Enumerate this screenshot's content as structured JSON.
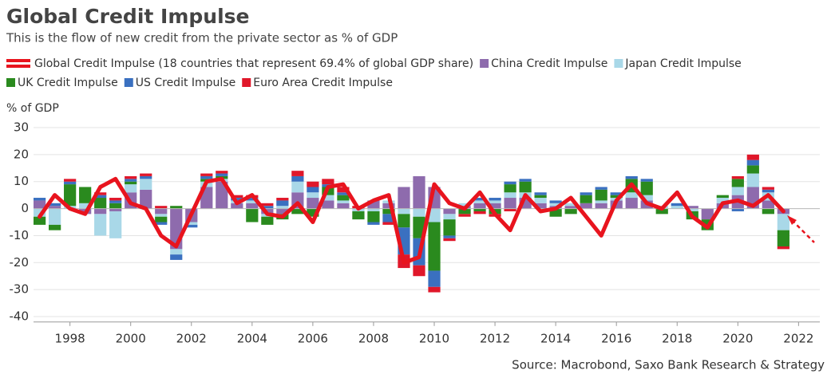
{
  "chart_data": {
    "type": "bar",
    "title": "Global Credit Impulse",
    "subtitle": "This is the flow of new credit from the private sector as % of GDP",
    "y_label": "% of GDP",
    "source": "Source: Macrobond, Saxo Bank Research & Strategy",
    "x": [
      1997,
      1997.5,
      1998,
      1998.5,
      1999,
      1999.5,
      2000,
      2000.5,
      2001,
      2001.5,
      2002,
      2002.5,
      2003,
      2003.5,
      2004,
      2004.5,
      2005,
      2005.5,
      2006,
      2006.5,
      2007,
      2007.5,
      2008,
      2008.5,
      2009,
      2009.5,
      2010,
      2010.5,
      2011,
      2011.5,
      2012,
      2012.5,
      2013,
      2013.5,
      2014,
      2014.5,
      2015,
      2015.5,
      2016,
      2016.5,
      2017,
      2017.5,
      2018,
      2018.5,
      2019,
      2019.5,
      2020,
      2020.5,
      2021,
      2021.5
    ],
    "series": [
      {
        "name": "Global Credit Impulse (18 countries that represent 69.4% of global GDP share)",
        "color": "#e8141e",
        "style": "line",
        "values": [
          -3,
          5,
          0,
          -2,
          8,
          11,
          2,
          0,
          -10,
          -14,
          -2,
          10,
          11,
          2,
          5,
          -2,
          -3,
          2,
          -5,
          8,
          9,
          0,
          3,
          5,
          -20,
          -18,
          9,
          2,
          0,
          6,
          -2,
          -8,
          5,
          -1,
          0,
          4,
          -3,
          -10,
          3,
          9,
          2,
          0,
          6,
          -3,
          -7,
          2,
          3,
          1,
          5,
          -1
        ]
      },
      {
        "name": "China Credit Impulse",
        "color": "#8e6bad",
        "values": [
          3,
          1,
          0,
          -2,
          -2,
          -1,
          6,
          7,
          -2,
          -15,
          -5,
          8,
          10,
          2,
          2,
          -2,
          -2,
          6,
          4,
          3,
          2,
          0,
          3,
          2,
          8,
          12,
          8,
          -2,
          1,
          2,
          2,
          4,
          4,
          2,
          1,
          1,
          2,
          2,
          3,
          4,
          3,
          0,
          0,
          1,
          -4,
          2,
          5,
          8,
          3,
          -2
        ]
      },
      {
        "name": "Japan Credit Impulse",
        "color": "#a9d8e8",
        "values": [
          -3,
          -6,
          1,
          2,
          -8,
          -10,
          3,
          4,
          -1,
          -2,
          -1,
          2,
          1,
          1,
          1,
          -1,
          1,
          4,
          2,
          2,
          1,
          -1,
          -1,
          1,
          -2,
          -3,
          -5,
          -2,
          1,
          1,
          1,
          2,
          2,
          2,
          1,
          1,
          0,
          1,
          1,
          2,
          2,
          1,
          1,
          -1,
          0,
          2,
          3,
          5,
          3,
          -6
        ]
      },
      {
        "name": "UK Credit Impulse",
        "color": "#2a8a1e",
        "values": [
          -3,
          -2,
          8,
          6,
          4,
          2,
          1,
          0,
          -2,
          1,
          0,
          1,
          1,
          0,
          -5,
          -3,
          -2,
          -2,
          -3,
          3,
          2,
          -3,
          -4,
          -2,
          -5,
          -8,
          -18,
          -6,
          -2,
          -1,
          -2,
          3,
          4,
          1,
          -3,
          -2,
          3,
          4,
          1,
          5,
          5,
          -2,
          0,
          -3,
          -4,
          1,
          3,
          3,
          -2,
          -6
        ]
      },
      {
        "name": "US Credit Impulse",
        "color": "#3a70c0",
        "values": [
          1,
          1,
          1,
          0,
          1,
          1,
          1,
          1,
          -1,
          -2,
          -1,
          1,
          1,
          1,
          1,
          1,
          2,
          2,
          2,
          1,
          1,
          0,
          -1,
          -3,
          -10,
          -10,
          -6,
          -1,
          0,
          1,
          1,
          1,
          1,
          1,
          1,
          0,
          1,
          1,
          1,
          1,
          1,
          0,
          1,
          0,
          0,
          0,
          -1,
          2,
          1,
          0
        ]
      },
      {
        "name": "Euro Area Credit Impulse",
        "color": "#e0172a",
        "values": [
          0,
          0,
          1,
          0,
          1,
          1,
          1,
          1,
          1,
          0,
          0,
          1,
          1,
          1,
          1,
          1,
          1,
          2,
          2,
          2,
          2,
          1,
          0,
          -1,
          -5,
          -4,
          -2,
          -1,
          -1,
          -1,
          -1,
          -1,
          0,
          0,
          0,
          0,
          0,
          0,
          0,
          0,
          0,
          0,
          0,
          0,
          0,
          0,
          1,
          2,
          1,
          -1
        ]
      }
    ],
    "xlim": [
      1996.8,
      2022.7
    ],
    "xticks": [
      1998,
      2000,
      2002,
      2004,
      2006,
      2008,
      2010,
      2012,
      2014,
      2016,
      2018,
      2020,
      2022
    ],
    "ylim": [
      -42,
      31
    ],
    "yticks": [
      30,
      20,
      10,
      0,
      -10,
      -20,
      -30,
      -40
    ],
    "grid": true
  }
}
